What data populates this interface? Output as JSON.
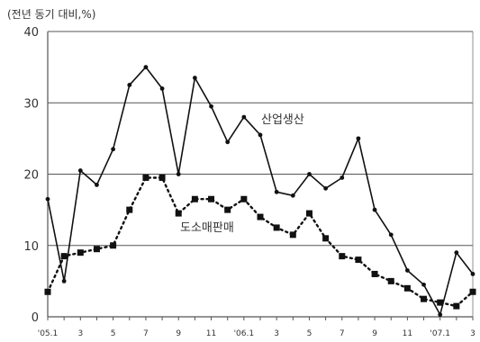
{
  "chart_data": {
    "type": "line",
    "unit_label": "(전년 동기 대비,%)",
    "ylim": [
      0,
      40
    ],
    "yticks": [
      0,
      10,
      20,
      30,
      40
    ],
    "grid": true,
    "x_tick_labels": [
      "'05.1",
      "3",
      "5",
      "7",
      "9",
      "11",
      "'06.1",
      "3",
      "5",
      "7",
      "9",
      "11",
      "'07.1",
      "3"
    ],
    "x_tick_positions": [
      0,
      2,
      4,
      6,
      8,
      10,
      12,
      14,
      16,
      18,
      20,
      22,
      24,
      26
    ],
    "x_count": 27,
    "series": [
      {
        "name": "산업생산",
        "style": "solid",
        "marker": "dot",
        "color": "#111111",
        "values": [
          16.5,
          5,
          20.5,
          18.5,
          23.5,
          32.5,
          35,
          32,
          20,
          33.5,
          29.5,
          24.5,
          28,
          25.5,
          17.5,
          17,
          20,
          18,
          19.5,
          25,
          15,
          11.5,
          6.5,
          4.5,
          0.3,
          9,
          6
        ]
      },
      {
        "name": "도소매판매",
        "style": "dotted",
        "marker": "square",
        "color": "#111111",
        "values": [
          3.5,
          8.5,
          9,
          9.5,
          10,
          15,
          19.5,
          19.5,
          14.5,
          16.5,
          16.5,
          15,
          16.5,
          14,
          12.5,
          11.5,
          14.5,
          11,
          8.5,
          8,
          6,
          5,
          4,
          2.5,
          2,
          1.5,
          3.5
        ]
      }
    ]
  }
}
